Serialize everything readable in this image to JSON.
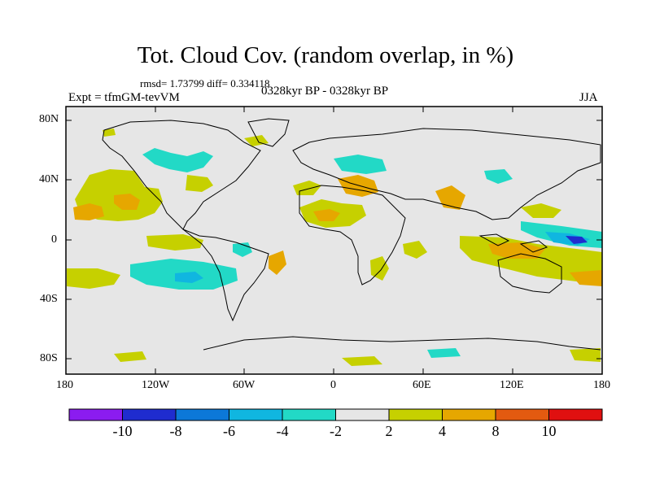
{
  "header": {
    "title": "Tot. Cloud Cov. (random overlap, in %)",
    "stats": "rmsd= 1.73799 diff= 0.334118",
    "experiment": "Expt = tfmGM-tevVM",
    "period": "0328kyr BP - 0328kyr BP",
    "season": "JJA"
  },
  "axes": {
    "lat_labels": [
      "80N",
      "40N",
      "0",
      "40S",
      "80S"
    ],
    "lon_labels": [
      "180",
      "120W",
      "60W",
      "0",
      "60E",
      "120E",
      "180"
    ]
  },
  "colorbar": {
    "labels": [
      "-10",
      "-8",
      "-6",
      "-4",
      "-2",
      "2",
      "4",
      "8",
      "10"
    ],
    "colors": [
      "#8b1cf0",
      "#1f2ccf",
      "#0c78d8",
      "#10b6e0",
      "#22d9c6",
      "#e6e6e6",
      "#c6d000",
      "#e6a700",
      "#e35a10",
      "#e01010"
    ]
  },
  "map_colors": {
    "background": "#e6e6e6",
    "frame": "#000000"
  }
}
